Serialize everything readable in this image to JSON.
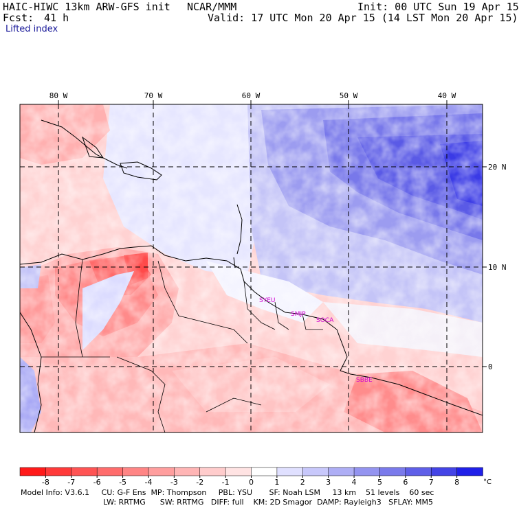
{
  "header": {
    "model": "HAIC-HIWC 13km ARW-GFS init",
    "center": "NCAR/MMM",
    "init": "Init: 00 UTC Sun 19 Apr 15",
    "fcst_label": "Fcst:",
    "fcst_value": "41 h",
    "valid": "Valid: 17 UTC Mon 20 Apr 15 (14 LST Mon 20 Apr 15)",
    "field": "Lifted index"
  },
  "map": {
    "lon_labels": [
      "80 W",
      "70 W",
      "60 W",
      "50 W",
      "40 W"
    ],
    "lat_labels": [
      "20 N",
      "10 N",
      "0"
    ],
    "stations": [
      "SYEU",
      "SMJP",
      "SOCA",
      "SBBE"
    ]
  },
  "colorbar": {
    "ticks": [
      "-8",
      "-7",
      "-6",
      "-5",
      "-4",
      "-3",
      "-2",
      "-1",
      "0",
      "1",
      "2",
      "3",
      "4",
      "5",
      "6",
      "7",
      "8"
    ],
    "unit": "°C",
    "colors": [
      "#ff1a1a",
      "#ff3a3a",
      "#ff5454",
      "#ff6c6c",
      "#ff8585",
      "#ff9e9e",
      "#ffb5b5",
      "#ffcccc",
      "#ffe3e3",
      "#ffffff",
      "#e0e0ff",
      "#c8c8fb",
      "#aeaef5",
      "#9494f0",
      "#7a7aeb",
      "#5f5fe8",
      "#4444e6",
      "#2020e8"
    ]
  },
  "footer": {
    "line1": "Model Info: V3.6.1     CU: G-F Ens  MP: Thompson     PBL: YSU       SF: Noah LSM     13 km    51 levels    60 sec",
    "line2": "LW: RRTMG      SW: RRTMG   DIFF: full    KM: 2D Smagor  DAMP: Rayleigh3   SFLAY: MM5"
  }
}
